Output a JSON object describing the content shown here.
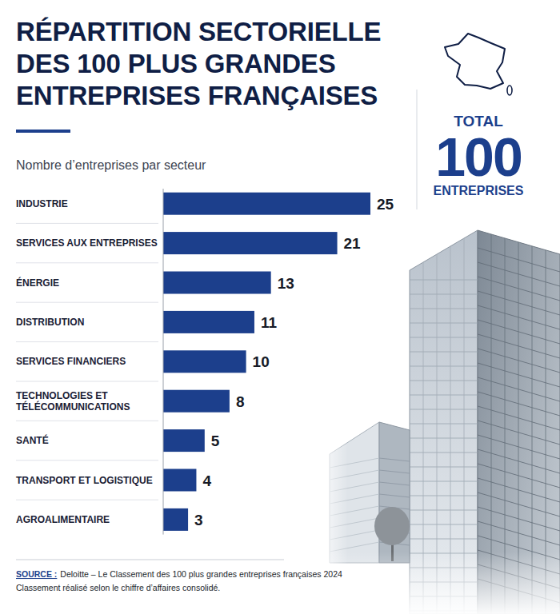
{
  "chart_data": {
    "type": "bar",
    "orientation": "horizontal",
    "title": "RÉPARTITION SECTORIELLE DES 100 PLUS GRANDES ENTREPRISES FRANÇAISES",
    "subtitle": "Nombre d’entreprises par secteur",
    "categories": [
      "INDUSTRIE",
      "SERVICES AUX ENTREPRISES",
      "ÉNERGIE",
      "DISTRIBUTION",
      "SERVICES FINANCIERS",
      "TECHNOLOGIES ET TÉLÉCOMMUNICATIONS",
      "SANTÉ",
      "TRANSPORT ET LOGISTIQUE",
      "AGROALIMENTAIRE"
    ],
    "values": [
      25,
      21,
      13,
      11,
      10,
      8,
      5,
      4,
      3
    ],
    "color": "#1c3f8c",
    "xlim": [
      0,
      25
    ],
    "data_labels": true,
    "tick_labels": false,
    "annotations": [
      "TOTAL",
      "100",
      "ENTREPRISES"
    ],
    "source": {
      "label": "SOURCE :",
      "text": "Deloitte – Le Classement des 100 plus grandes entreprises françaises 2024",
      "note": "Classement réalisé selon le chiffre d’affaires consolidé."
    }
  }
}
